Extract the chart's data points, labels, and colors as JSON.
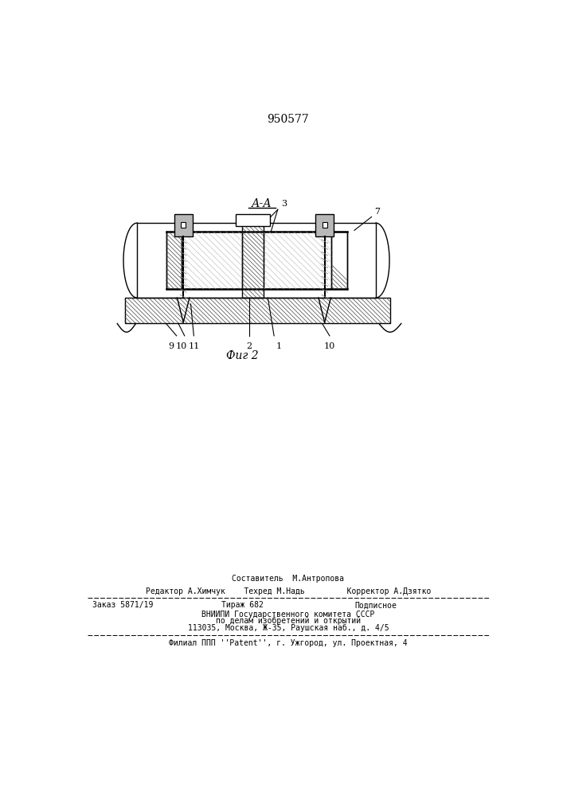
{
  "patent_number": "950577",
  "section_label": "А-А",
  "fig_label": "Фиг 2",
  "bg_color": "#ffffff",
  "line_color": "#000000",
  "footer_line1": "Составитель  М.Антропова",
  "footer_line2": "Редактор А.Химчук    Техред М.Надь         Корректор А.Дзятко",
  "footer_line3a": "Заказ 5871/19",
  "footer_line3b": "Тираж 682",
  "footer_line3c": "Подписное",
  "footer_line4": "ВНИИПИ Государственного комитета СССР",
  "footer_line5": "по делам изобретений и открытий",
  "footer_line6": "113035, Москва, Ж-35, Раушская наб., д. 4/5",
  "footer_line7": "Филиал ППП ''Patent'', г. Ужгород, ул. Проектная, 4"
}
